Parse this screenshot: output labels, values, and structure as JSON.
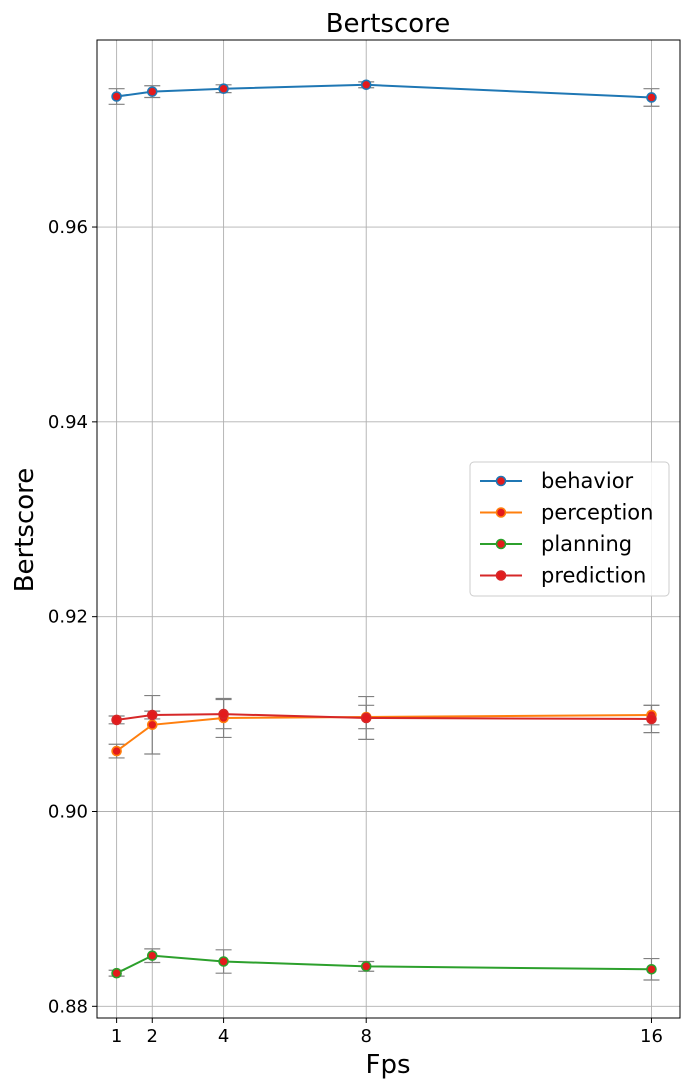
{
  "chart_data": {
    "type": "line",
    "title": "Bertscore",
    "xlabel": "Fps",
    "ylabel": "Bertscore",
    "x": [
      1,
      2,
      4,
      8,
      16
    ],
    "x_tick_labels": [
      "1",
      "2",
      "4",
      "8",
      "16"
    ],
    "xlim": [
      0.45,
      16.8
    ],
    "ylim": [
      0.8788,
      0.9792
    ],
    "y_ticks": [
      0.88,
      0.9,
      0.92,
      0.94,
      0.96
    ],
    "y_tick_labels": [
      "0.88",
      "0.90",
      "0.92",
      "0.94",
      "0.96"
    ],
    "grid": true,
    "legend_position": "center-right",
    "error_bar_color": "#808080",
    "marker_fill": "#e31a1c",
    "series": [
      {
        "name": "behavior",
        "color": "#1f77b4",
        "values": [
          0.9734,
          0.9739,
          0.9742,
          0.9746,
          0.9733
        ],
        "errors": [
          0.0008,
          0.0006,
          0.0004,
          0.0003,
          0.0009
        ]
      },
      {
        "name": "perception",
        "color": "#ff7f0e",
        "values": [
          0.9062,
          0.9089,
          0.9096,
          0.9097,
          0.9099
        ],
        "errors": [
          0.0007,
          0.003,
          0.002,
          0.0012,
          0.001
        ]
      },
      {
        "name": "planning",
        "color": "#2ca02c",
        "values": [
          0.8834,
          0.8852,
          0.8846,
          0.8841,
          0.8838
        ],
        "errors": [
          0.0003,
          0.0007,
          0.0012,
          0.0005,
          0.0011
        ]
      },
      {
        "name": "prediction",
        "color": "#d62728",
        "values": [
          0.9094,
          0.9099,
          0.91,
          0.9096,
          0.9095
        ],
        "errors": [
          0.0004,
          0.0004,
          0.0015,
          0.0022,
          0.0014
        ]
      }
    ]
  }
}
